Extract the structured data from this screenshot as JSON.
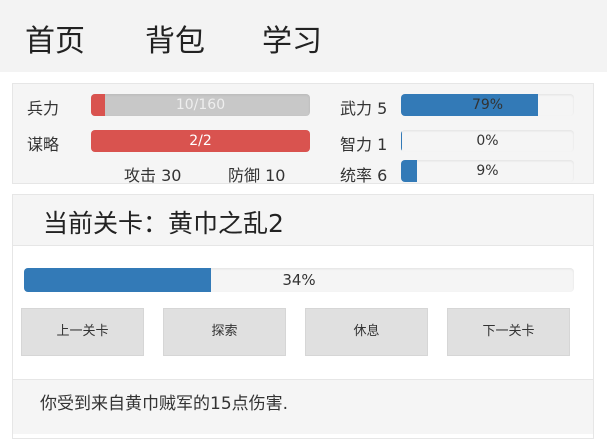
{
  "nav": {
    "items": [
      "首页",
      "背包",
      "学习"
    ]
  },
  "stats": {
    "troops": {
      "label": "兵力",
      "text": "10/160",
      "value": 10,
      "max": 160,
      "color": "#d9534f",
      "track": "#c8c8c8"
    },
    "strategy": {
      "label": "谋略",
      "text": "2/2",
      "value": 2,
      "max": 2,
      "color": "#d9534f"
    },
    "attack": "攻击 30",
    "defense": "防御 10",
    "force": {
      "label": "武力 5",
      "text": "79%",
      "percent": 79
    },
    "intellect": {
      "label": "智力 1",
      "text": "0%",
      "percent": 0
    },
    "command": {
      "label": "统率 6",
      "text": "9%",
      "percent": 9
    },
    "accent": "#337ab7"
  },
  "stage": {
    "title": "当前关卡：黄巾之乱2",
    "progress_text": "34%",
    "progress": 34,
    "buttons": [
      "上一关卡",
      "探索",
      "休息",
      "下一关卡"
    ],
    "log": "你受到来自黄巾贼军的15点伤害."
  }
}
